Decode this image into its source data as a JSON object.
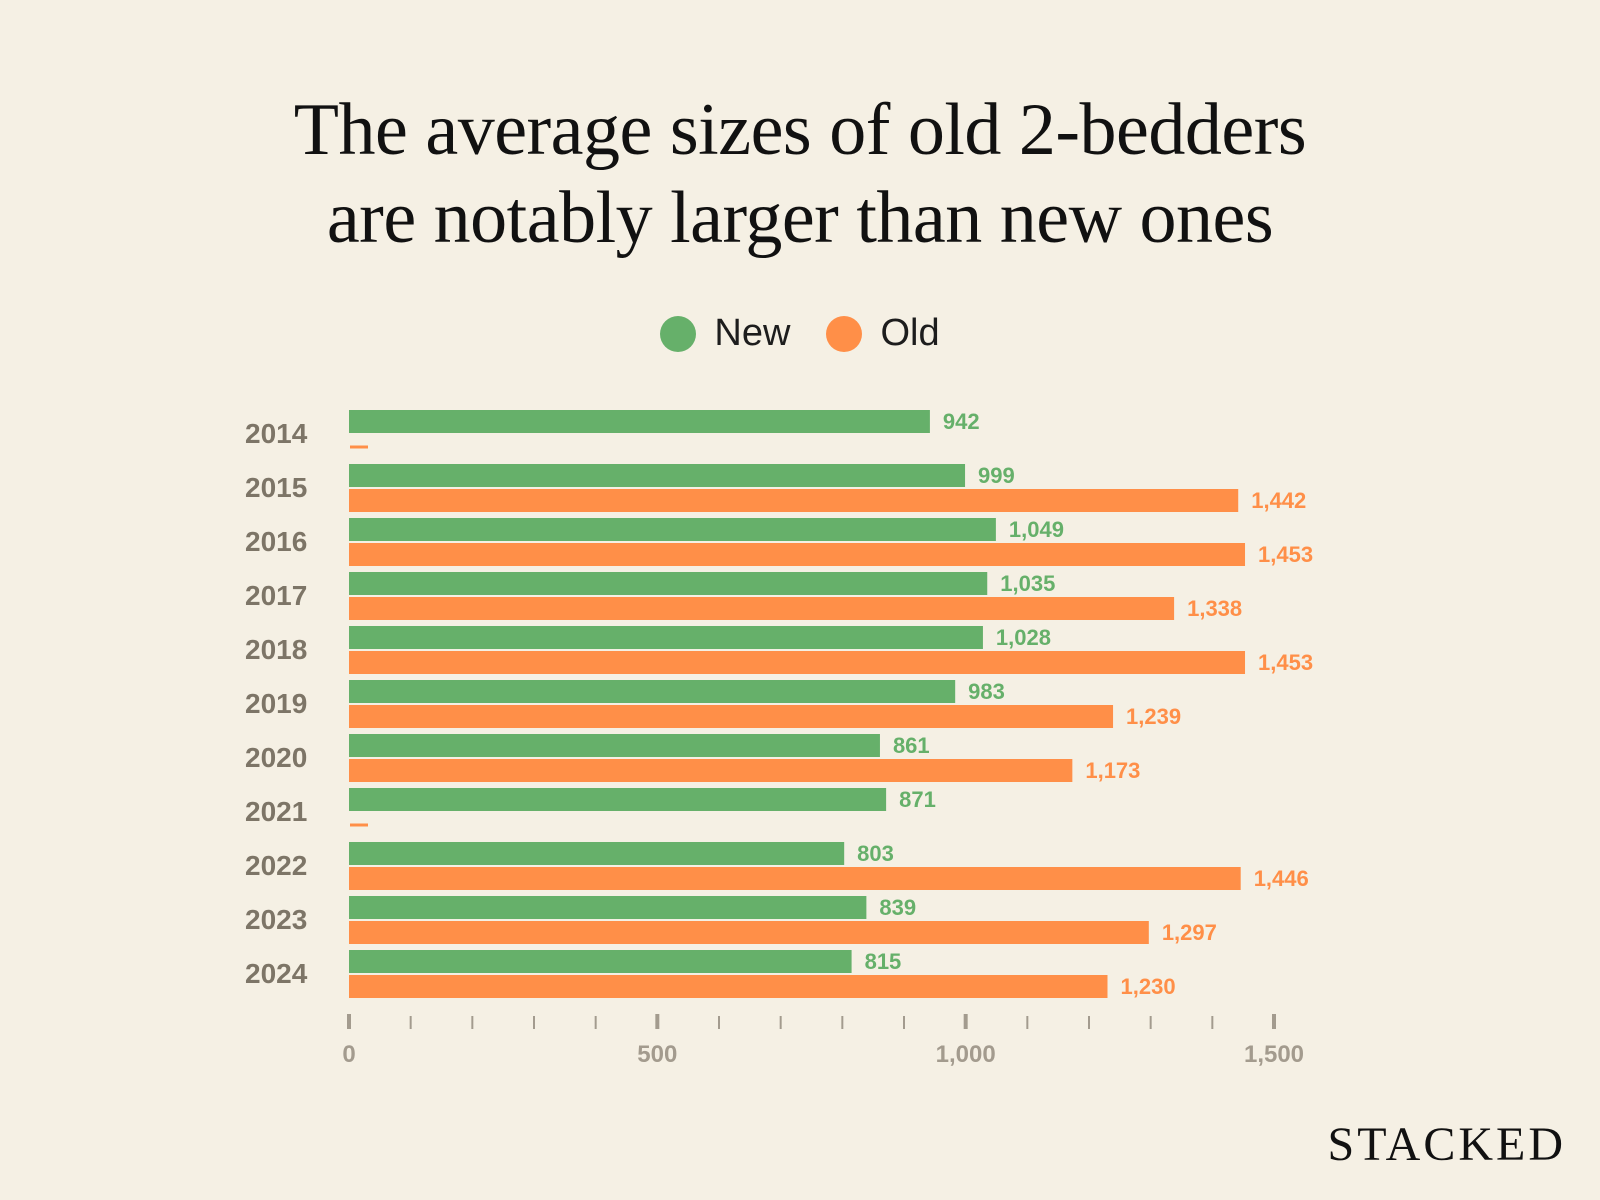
{
  "title_lines": [
    "The average sizes of old 2-bedders",
    "are notably larger than new ones"
  ],
  "brand": "STACKED",
  "colors": {
    "new": "#66b06a",
    "old": "#ff8f48",
    "year_text": "#7d7567",
    "tick_text": "#a39b8e"
  },
  "chart_data": {
    "type": "bar",
    "orientation": "horizontal",
    "categories": [
      "2014",
      "2015",
      "2016",
      "2017",
      "2018",
      "2019",
      "2020",
      "2021",
      "2022",
      "2023",
      "2024"
    ],
    "series": [
      {
        "name": "New",
        "values": [
          942,
          999,
          1049,
          1035,
          1028,
          983,
          861,
          871,
          803,
          839,
          815
        ],
        "labels": [
          "942",
          "999",
          "1,049",
          "1,035",
          "1,028",
          "983",
          "861",
          "871",
          "803",
          "839",
          "815"
        ]
      },
      {
        "name": "Old",
        "values": [
          null,
          1442,
          1453,
          1338,
          1453,
          1239,
          1173,
          null,
          1446,
          1297,
          1230
        ],
        "labels": [
          "",
          "1,442",
          "1,453",
          "1,338",
          "1,453",
          "1,239",
          "1,173",
          "",
          "1,446",
          "1,297",
          "1,230"
        ]
      }
    ],
    "xlim": [
      0,
      1500
    ],
    "ticks": [
      0,
      500,
      1000,
      1500
    ],
    "tick_labels": [
      "0",
      "500",
      "1,000",
      "1,500"
    ],
    "minor_tick_step": 100,
    "legend_position": "top-center",
    "grid": false
  }
}
